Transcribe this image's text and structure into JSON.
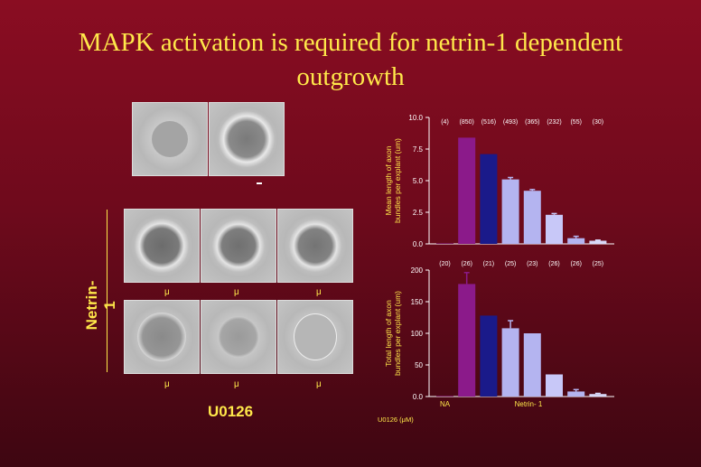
{
  "slide": {
    "title_line1": "MAPK activation is required for netrin-1 dependent",
    "title_line2": "outgrowth",
    "netrin_label": "Netrin-1",
    "u0126_label": "U0126",
    "mu_symbol": "μ"
  },
  "chart_data": [
    {
      "type": "bar",
      "ylabel": "Mean length of axon bundles per explant (um)",
      "ylim": [
        0,
        10
      ],
      "yticks": [
        "0.0",
        "2.5",
        "5.0",
        "7.5",
        "10.0"
      ],
      "n_labels": [
        "(4)",
        "(850)",
        "(516)",
        "(493)",
        "(365)",
        "(232)",
        "(55)",
        "(30)"
      ],
      "values": [
        0.0,
        8.4,
        7.1,
        5.1,
        4.2,
        2.3,
        0.45,
        0.25
      ],
      "errors": [
        0,
        0,
        0,
        0.15,
        0.1,
        0.1,
        0.15,
        0.05
      ],
      "colors": [
        "#7b1a5a",
        "#8b1a8a",
        "#1a1a8a",
        "#b4b4f0",
        "#b4b4f0",
        "#c8c8f8",
        "#b4b4f0",
        "#d8d8f8"
      ]
    },
    {
      "type": "bar",
      "ylabel": "Total length of axon bundles per explant (um)",
      "ylim": [
        0,
        200
      ],
      "yticks": [
        "0.0",
        "50",
        "100",
        "150",
        "200"
      ],
      "n_labels": [
        "(20)",
        "(26)",
        "(21)",
        "(25)",
        "(23)",
        "(26)",
        "(26)",
        "(25)"
      ],
      "values": [
        0.0,
        178,
        128,
        108,
        100,
        35,
        8,
        4
      ],
      "errors": [
        0,
        18,
        0,
        12,
        0,
        0,
        3,
        1
      ],
      "colors": [
        "#7b1a5a",
        "#8b1a8a",
        "#1a1a8a",
        "#b4b4f0",
        "#b4b4f0",
        "#c8c8f8",
        "#b4b4f0",
        "#d8d8f8"
      ],
      "xlabel_na": "NA",
      "xlabel_netrin": "Netrin- 1",
      "xlabel_u0126": "U0126 (μM)"
    }
  ]
}
